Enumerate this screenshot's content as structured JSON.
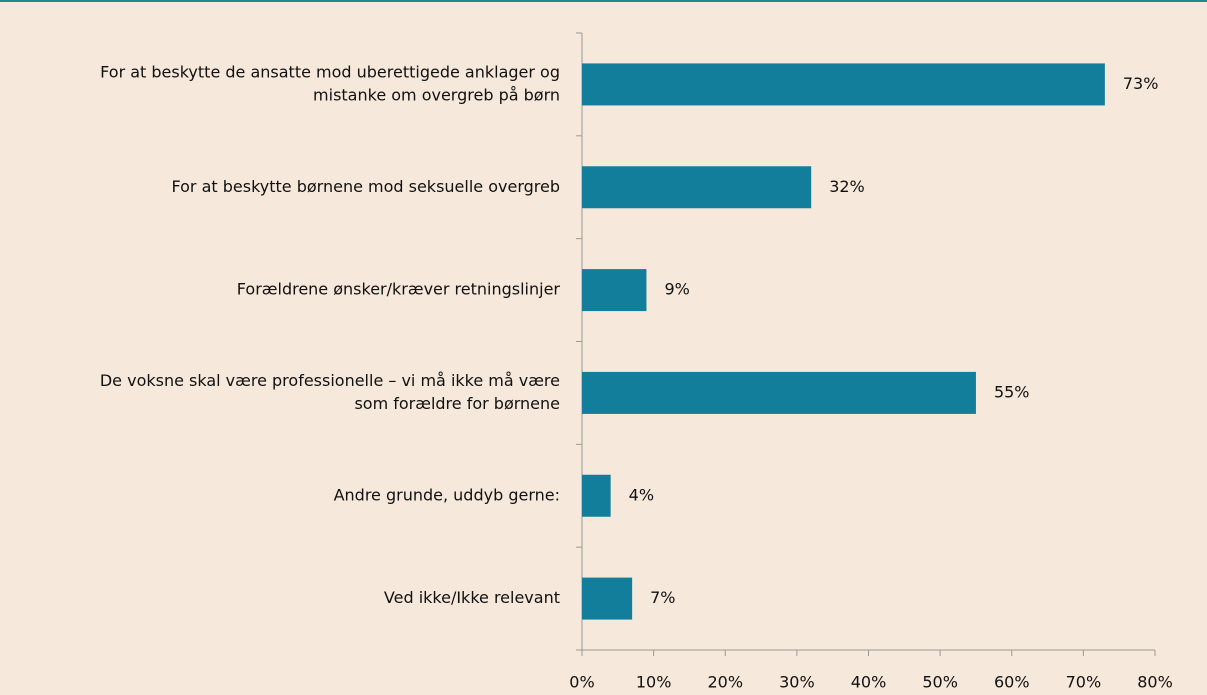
{
  "chart_data": {
    "type": "barh",
    "categories": [
      [
        "For at beskytte de ansatte mod uberettigede anklager og",
        "mistanke om overgreb på børn"
      ],
      [
        "For at beskytte børnene mod seksuelle overgreb"
      ],
      [
        "Forældrene ønsker/kræver retningslinjer"
      ],
      [
        "De voksne skal være professionelle – vi må ikke må være",
        "som forældre for børnene"
      ],
      [
        "Andre grunde, uddyb gerne:"
      ],
      [
        "Ved ikke/Ikke relevant"
      ]
    ],
    "values": [
      73,
      32,
      9,
      55,
      4,
      7
    ],
    "value_labels": [
      "73%",
      "32%",
      "9%",
      "55%",
      "4%",
      "7%"
    ],
    "color": "#137e9b",
    "xlim": [
      0,
      80
    ],
    "xticks": [
      {
        "value": 0,
        "label": "0%"
      },
      {
        "value": 10,
        "label": "10%"
      },
      {
        "value": 20,
        "label": "20%"
      },
      {
        "value": 30,
        "label": "30%"
      },
      {
        "value": 40,
        "label": "40%"
      },
      {
        "value": 50,
        "label": "50%"
      },
      {
        "value": 60,
        "label": "60%"
      },
      {
        "value": 70,
        "label": "70%"
      },
      {
        "value": 80,
        "label": "80%"
      }
    ]
  }
}
